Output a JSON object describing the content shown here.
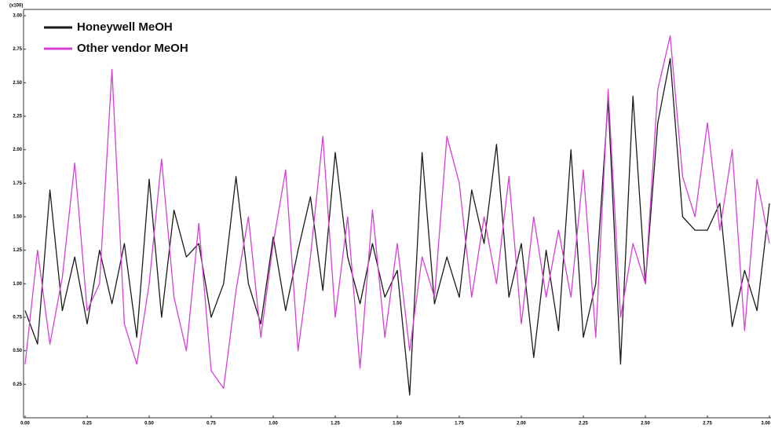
{
  "chart_data": {
    "type": "line",
    "annotation": "(x100)",
    "x": [
      0,
      0.05,
      0.1,
      0.15,
      0.2,
      0.25,
      0.3,
      0.35,
      0.4,
      0.45,
      0.5,
      0.55,
      0.6,
      0.65,
      0.7,
      0.75,
      0.8,
      0.85,
      0.9,
      0.95,
      1,
      1.05,
      1.1,
      1.15,
      1.2,
      1.25,
      1.3,
      1.35,
      1.4,
      1.45,
      1.5,
      1.55,
      1.6,
      1.65,
      1.7,
      1.75,
      1.8,
      1.85,
      1.9,
      1.95,
      2,
      2.05,
      2.1,
      2.15,
      2.2,
      2.25,
      2.3,
      2.35,
      2.4,
      2.45,
      2.5,
      2.55,
      2.6,
      2.65,
      2.7,
      2.75,
      2.8,
      2.85,
      2.9,
      2.95,
      3
    ],
    "series": [
      {
        "name": "Honeywell MeOH",
        "color": "#1a1a1a",
        "values": [
          0.8,
          0.55,
          1.7,
          0.8,
          1.2,
          0.7,
          1.25,
          0.85,
          1.3,
          0.6,
          1.78,
          0.75,
          1.55,
          1.2,
          1.3,
          0.75,
          1.0,
          1.8,
          1.0,
          0.7,
          1.35,
          0.8,
          1.25,
          1.65,
          0.95,
          1.98,
          1.2,
          0.85,
          1.3,
          0.9,
          1.1,
          0.17,
          1.98,
          0.85,
          1.2,
          0.9,
          1.7,
          1.3,
          2.04,
          0.9,
          1.3,
          0.45,
          1.25,
          0.65,
          2.0,
          0.6,
          1.0,
          2.37,
          0.4,
          2.4,
          1.0,
          2.2,
          2.68,
          1.5,
          1.4,
          1.4,
          1.6,
          0.68,
          1.1,
          0.8,
          1.6
        ]
      },
      {
        "name": "Other vendor MeOH",
        "color": "#d63fd6",
        "values": [
          0.4,
          1.25,
          0.55,
          1.05,
          1.9,
          0.8,
          1.0,
          2.6,
          0.7,
          0.4,
          1.0,
          1.93,
          0.9,
          0.5,
          1.45,
          0.35,
          0.22,
          0.95,
          1.5,
          0.6,
          1.3,
          1.85,
          0.5,
          1.2,
          2.1,
          0.75,
          1.5,
          0.37,
          1.55,
          0.6,
          1.3,
          0.5,
          1.2,
          0.9,
          2.1,
          1.75,
          0.9,
          1.5,
          1.0,
          1.8,
          0.7,
          1.5,
          0.9,
          1.4,
          0.9,
          1.85,
          0.6,
          2.45,
          0.75,
          1.3,
          1.0,
          2.45,
          2.85,
          1.8,
          1.5,
          2.2,
          1.4,
          2.0,
          0.65,
          1.78,
          1.3
        ]
      }
    ],
    "xlim": [
      0,
      3
    ],
    "xticks": [
      {
        "value": 0,
        "label": "0.00"
      },
      {
        "value": 0.25,
        "label": "0.25"
      },
      {
        "value": 0.5,
        "label": "0.50"
      },
      {
        "value": 0.75,
        "label": "0.75"
      },
      {
        "value": 1,
        "label": "1.00"
      },
      {
        "value": 1.25,
        "label": "1.25"
      },
      {
        "value": 1.5,
        "label": "1.50"
      },
      {
        "value": 1.75,
        "label": "1.75"
      },
      {
        "value": 2,
        "label": "2.00"
      },
      {
        "value": 2.25,
        "label": "2.25"
      },
      {
        "value": 2.5,
        "label": "2.50"
      },
      {
        "value": 2.75,
        "label": "2.75"
      },
      {
        "value": 3,
        "label": "3.00"
      }
    ],
    "ylim": [
      0,
      3
    ],
    "yticks": [
      {
        "value": 0.25,
        "label": "0.25"
      },
      {
        "value": 0.5,
        "label": "0.50"
      },
      {
        "value": 0.75,
        "label": "0.75"
      },
      {
        "value": 1,
        "label": "1.00"
      },
      {
        "value": 1.25,
        "label": "1.25"
      },
      {
        "value": 1.5,
        "label": "1.50"
      },
      {
        "value": 1.75,
        "label": "1.75"
      },
      {
        "value": 2,
        "label": "2.00"
      },
      {
        "value": 2.25,
        "label": "2.25"
      },
      {
        "value": 2.5,
        "label": "2.50"
      },
      {
        "value": 2.75,
        "label": "2.75"
      },
      {
        "value": 3,
        "label": "3.00"
      }
    ],
    "legend": "top-left"
  }
}
